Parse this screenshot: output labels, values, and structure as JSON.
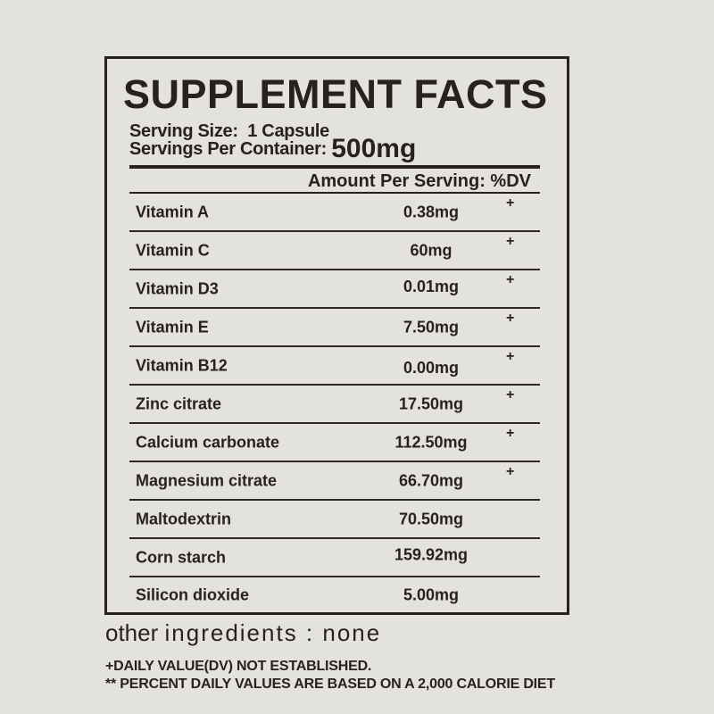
{
  "label": {
    "title": "SUPPLEMENT FACTS",
    "serving_size_label": "Serving Size:",
    "serving_size_value": "1 Capsule",
    "servings_per_container_label": "Servings Per Container:",
    "servings_per_container_value": "500mg",
    "column_header": "Amount Per Serving: %DV",
    "ingredients": [
      {
        "name": "Vitamin A",
        "amount": "0.38mg",
        "dv": "+"
      },
      {
        "name": "Vitamin C",
        "amount": "60mg",
        "dv": "+"
      },
      {
        "name": "Vitamin D3",
        "amount": "0.01mg",
        "dv": "+"
      },
      {
        "name": "Vitamin E",
        "amount": "7.50mg",
        "dv": "+"
      },
      {
        "name": "Vitamin B12",
        "amount": "0.00mg",
        "dv": "+"
      },
      {
        "name": "Zinc citrate",
        "amount": "17.50mg",
        "dv": "+"
      },
      {
        "name": "Calcium carbonate",
        "amount": "112.50mg",
        "dv": "+"
      },
      {
        "name": "Magnesium citrate",
        "amount": "66.70mg",
        "dv": "+"
      },
      {
        "name": "Maltodextrin",
        "amount": "70.50mg",
        "dv": ""
      },
      {
        "name": "Corn starch",
        "amount": "159.92mg",
        "dv": ""
      },
      {
        "name": "Silicon dioxide",
        "amount": "5.00mg",
        "dv": ""
      }
    ]
  },
  "footer": {
    "other_ingredients_prefix": "other",
    "other_ingredients_rest": "ingredients : none",
    "footnote_dv_not_established": "+DAILY VALUE(DV) NOT ESTABLISHED.",
    "footnote_percent_daily_values": "** PERCENT DAILY VALUES ARE BASED ON A 2,000 CALORIE DIET"
  },
  "colors": {
    "background": "#e4e2dd",
    "ink": "#29221c"
  }
}
